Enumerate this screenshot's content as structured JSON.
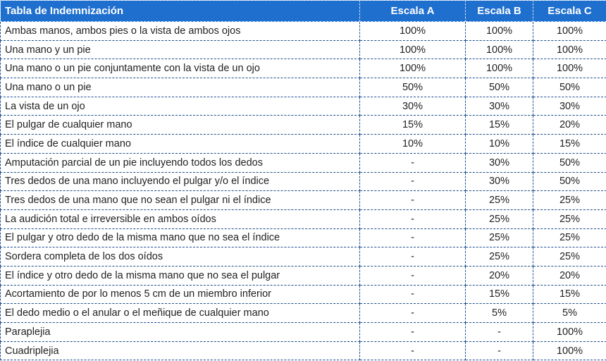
{
  "table": {
    "headers": [
      "Tabla de Indemnización",
      "Escala A",
      "Escala B",
      "Escala C"
    ],
    "rows": [
      [
        "Ambas manos, ambos pies o la vista de ambos ojos",
        "100%",
        "100%",
        "100%"
      ],
      [
        "Una mano y un pie",
        "100%",
        "100%",
        "100%"
      ],
      [
        "Una mano o un pie conjuntamente con la vista de un ojo",
        "100%",
        "100%",
        "100%"
      ],
      [
        "Una mano o un pie",
        "50%",
        "50%",
        "50%"
      ],
      [
        "La vista de un ojo",
        "30%",
        "30%",
        "30%"
      ],
      [
        "El pulgar de cualquier mano",
        "15%",
        "15%",
        "20%"
      ],
      [
        "El índice de cualquier mano",
        "10%",
        "10%",
        "15%"
      ],
      [
        "Amputación parcial de un pie incluyendo todos los dedos",
        "-",
        "30%",
        "50%"
      ],
      [
        "Tres dedos de una mano incluyendo el pulgar y/o el índice",
        "-",
        "30%",
        "50%"
      ],
      [
        "Tres dedos de una mano que no sean el pulgar ni el índice",
        "-",
        "25%",
        "25%"
      ],
      [
        "La audición total e irreversible en ambos oídos",
        "-",
        "25%",
        "25%"
      ],
      [
        "El pulgar y otro dedo de la misma mano que no sea el índice",
        "-",
        "25%",
        "25%"
      ],
      [
        "Sordera completa de los dos oídos",
        "-",
        "25%",
        "25%"
      ],
      [
        "El índice y otro dedo de la misma mano que no sea el pulgar",
        "-",
        "20%",
        "20%"
      ],
      [
        "Acortamiento de por lo menos 5 cm de un miembro inferior",
        "-",
        "15%",
        "15%"
      ],
      [
        "El dedo medio o el anular o el meñique de cualquier mano",
        "-",
        "5%",
        "5%"
      ],
      [
        "Paraplejia",
        "-",
        "-",
        "100%"
      ],
      [
        "Cuadriplejia",
        "-",
        "-",
        "100%"
      ]
    ]
  },
  "colors": {
    "header_bg": "#1f6fcf",
    "header_text": "#ffffff",
    "border": "#1f4f8f"
  }
}
